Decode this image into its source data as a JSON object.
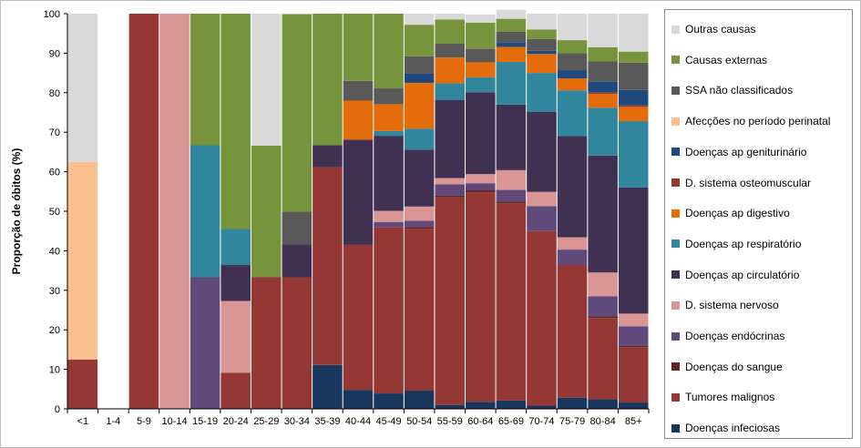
{
  "chart_data": {
    "type": "bar",
    "stacked": true,
    "title": "",
    "xlabel": "",
    "ylabel": "Proporção de óbitos (%)",
    "ylim": [
      0,
      100
    ],
    "yticks": [
      0,
      10,
      20,
      30,
      40,
      50,
      60,
      70,
      80,
      90,
      100
    ],
    "grid": false,
    "legend_position": "right",
    "categories": [
      "<1",
      "1-4",
      "5-9",
      "10-14",
      "15-19",
      "20-24",
      "25-29",
      "30-34",
      "35-39",
      "40-44",
      "45-49",
      "50-54",
      "55-59",
      "60-64",
      "65-69",
      "70-74",
      "75-79",
      "80-84",
      "85+"
    ],
    "series": [
      {
        "name": "Doenças infeciosas",
        "color": "#17375e",
        "values": [
          0,
          0,
          0,
          0,
          0,
          0,
          0,
          0,
          11.1,
          4.8,
          3.9,
          4.6,
          1.0,
          1.8,
          2.1,
          0.8,
          2.8,
          2.4,
          1.6
        ]
      },
      {
        "name": "Tumores malignos",
        "color": "#953735",
        "values": [
          12.5,
          0,
          100,
          0,
          0,
          9.1,
          33.3,
          33.3,
          50.0,
          36.7,
          42.1,
          41.0,
          52.5,
          53.0,
          49.9,
          44.2,
          33.6,
          20.6,
          14.0
        ]
      },
      {
        "name": "Doenças do sangue",
        "color": "#632523",
        "values": [
          0,
          0,
          0,
          0,
          0,
          0,
          0,
          0,
          0,
          0,
          0,
          0.4,
          0.5,
          0.5,
          0.5,
          0,
          0,
          0.4,
          0.3
        ]
      },
      {
        "name": "Doenças endócrinas",
        "color": "#604a7b",
        "values": [
          0,
          0,
          0,
          0,
          33.3,
          0,
          0,
          0,
          0,
          0,
          1.3,
          1.6,
          2.8,
          1.8,
          2.9,
          6.3,
          3.9,
          5.1,
          5.0
        ]
      },
      {
        "name": "D. sistema nervoso",
        "color": "#d99694",
        "values": [
          0,
          0,
          0,
          100,
          0,
          18.2,
          0,
          0,
          0,
          0,
          2.8,
          3.6,
          1.6,
          2.3,
          5.0,
          3.6,
          3.1,
          6.0,
          3.2
        ]
      },
      {
        "name": "Doenças ap circulatório",
        "color": "#403152",
        "values": [
          0,
          0,
          0,
          0,
          0,
          9.1,
          0,
          8.3,
          5.6,
          26.6,
          19.0,
          14.4,
          19.8,
          20.7,
          16.6,
          20.3,
          25.6,
          29.6,
          31.9
        ]
      },
      {
        "name": "Doenças ap respiratório",
        "color": "#31859c",
        "values": [
          0,
          0,
          0,
          0,
          33.4,
          9.1,
          0,
          0,
          0,
          0,
          1.2,
          5.3,
          4.2,
          3.8,
          10.8,
          9.8,
          11.6,
          12.1,
          16.8
        ]
      },
      {
        "name": "Doenças ap digestivo",
        "color": "#e46c0a",
        "values": [
          0,
          0,
          0,
          0,
          0,
          0,
          0,
          0,
          0,
          9.9,
          6.8,
          11.6,
          6.5,
          3.8,
          3.8,
          4.8,
          3.0,
          3.5,
          3.6
        ]
      },
      {
        "name": "D. sistema osteomuscular",
        "color": "#953735",
        "values": [
          0,
          0,
          0,
          0,
          0,
          0,
          0,
          0,
          0,
          0,
          0,
          0,
          0,
          0,
          0,
          0,
          0,
          0.4,
          0.4
        ]
      },
      {
        "name": "Doenças ap geniturinário",
        "color": "#1f497d",
        "values": [
          0,
          0,
          0,
          0,
          0,
          0,
          0,
          0,
          0,
          0,
          0,
          2.3,
          0,
          0,
          1.2,
          0.8,
          2.1,
          2.7,
          3.9
        ]
      },
      {
        "name": "Afecções no período perinatal",
        "color": "#fac090",
        "values": [
          50.0,
          0,
          0,
          0,
          0,
          0,
          0,
          0,
          0,
          0,
          0,
          0,
          0,
          0,
          0,
          0,
          0,
          0,
          0
        ]
      },
      {
        "name": "SSA não classificados",
        "color": "#595959",
        "values": [
          0,
          0,
          0,
          0,
          0,
          0,
          0,
          8.3,
          0,
          5.0,
          4.0,
          4.4,
          3.5,
          3.4,
          2.6,
          3.0,
          4.3,
          5.1,
          6.9
        ]
      },
      {
        "name": "Causas externas",
        "color": "#77933c",
        "values": [
          0,
          0,
          0,
          0,
          33.3,
          54.5,
          33.3,
          50.0,
          33.3,
          17.0,
          18.9,
          8.0,
          6.1,
          6.6,
          3.3,
          2.4,
          3.3,
          3.6,
          2.8
        ]
      },
      {
        "name": "Outras causas",
        "color": "#d9d9d9",
        "values": [
          37.5,
          0,
          0,
          0,
          0,
          0,
          33.4,
          0,
          0,
          0,
          0,
          2.8,
          1.5,
          2.1,
          2.3,
          4.0,
          6.7,
          8.5,
          9.6
        ]
      }
    ]
  }
}
